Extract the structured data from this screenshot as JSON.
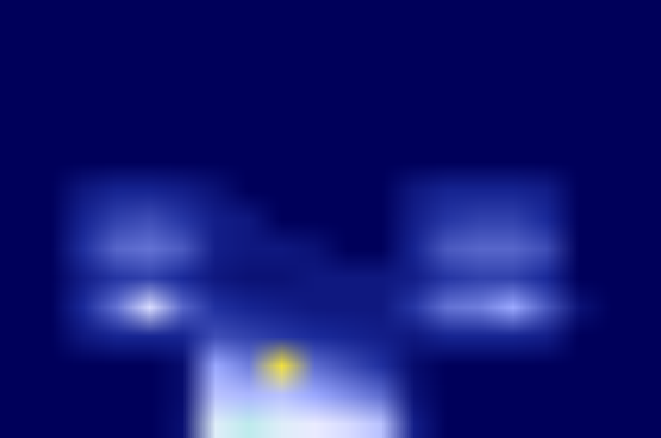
{
  "chart_data": {
    "type": "heatmap",
    "tick_labels": false,
    "cells": [
      [
        0,
        0,
        0,
        0,
        0,
        0,
        0,
        0,
        0,
        0,
        0,
        0,
        0,
        0,
        0,
        0,
        0,
        0,
        0,
        0
      ],
      [
        0,
        0,
        0,
        0,
        0,
        0,
        0,
        0,
        0,
        0,
        0,
        0,
        0,
        0,
        0,
        0,
        0,
        0,
        0,
        0
      ],
      [
        0,
        0,
        0,
        0,
        0,
        0,
        0,
        0,
        0,
        0,
        0,
        0,
        0,
        0,
        0,
        0,
        0,
        0,
        0,
        0
      ],
      [
        0,
        0,
        0,
        0,
        0,
        0,
        0,
        0,
        0,
        0,
        0,
        0,
        0,
        0,
        0,
        0,
        0,
        0,
        0,
        0
      ],
      [
        0,
        0,
        0,
        0,
        0,
        0,
        0,
        0,
        0,
        0,
        0,
        0,
        0,
        0,
        0,
        0,
        0,
        0,
        0,
        0
      ],
      [
        0,
        0,
        0,
        0,
        0,
        0,
        0,
        0,
        0,
        0,
        0,
        0,
        0,
        0,
        0,
        0,
        0,
        0,
        0,
        0
      ],
      [
        0,
        0,
        8,
        12,
        12,
        10,
        6,
        0,
        0,
        0,
        0,
        0,
        8,
        12,
        12,
        12,
        10,
        0,
        0,
        0
      ],
      [
        0,
        0,
        12,
        18,
        20,
        16,
        10,
        8,
        0,
        0,
        0,
        0,
        10,
        16,
        18,
        18,
        14,
        0,
        0,
        0
      ],
      [
        0,
        0,
        15,
        24,
        26,
        22,
        10,
        8,
        8,
        6,
        0,
        0,
        12,
        22,
        24,
        24,
        20,
        0,
        0,
        0
      ],
      [
        0,
        0,
        10,
        16,
        18,
        14,
        8,
        6,
        6,
        8,
        8,
        8,
        10,
        16,
        18,
        18,
        14,
        0,
        0,
        0
      ],
      [
        0,
        0,
        14,
        26,
        45,
        24,
        15,
        12,
        10,
        8,
        8,
        8,
        16,
        26,
        28,
        35,
        22,
        6,
        0,
        0
      ],
      [
        0,
        0,
        8,
        12,
        12,
        12,
        20,
        18,
        16,
        14,
        12,
        10,
        8,
        12,
        12,
        12,
        10,
        0,
        0,
        0
      ],
      [
        0,
        0,
        0,
        0,
        0,
        4,
        35,
        28,
        70,
        25,
        20,
        15,
        4,
        0,
        0,
        0,
        0,
        0,
        0,
        0
      ],
      [
        0,
        0,
        0,
        0,
        0,
        4,
        40,
        38,
        40,
        35,
        30,
        25,
        6,
        0,
        0,
        0,
        0,
        0,
        0,
        0
      ],
      [
        0,
        0,
        0,
        0,
        0,
        5,
        50,
        52,
        50,
        48,
        45,
        40,
        10,
        0,
        0,
        0,
        0,
        0,
        0,
        0
      ]
    ]
  }
}
